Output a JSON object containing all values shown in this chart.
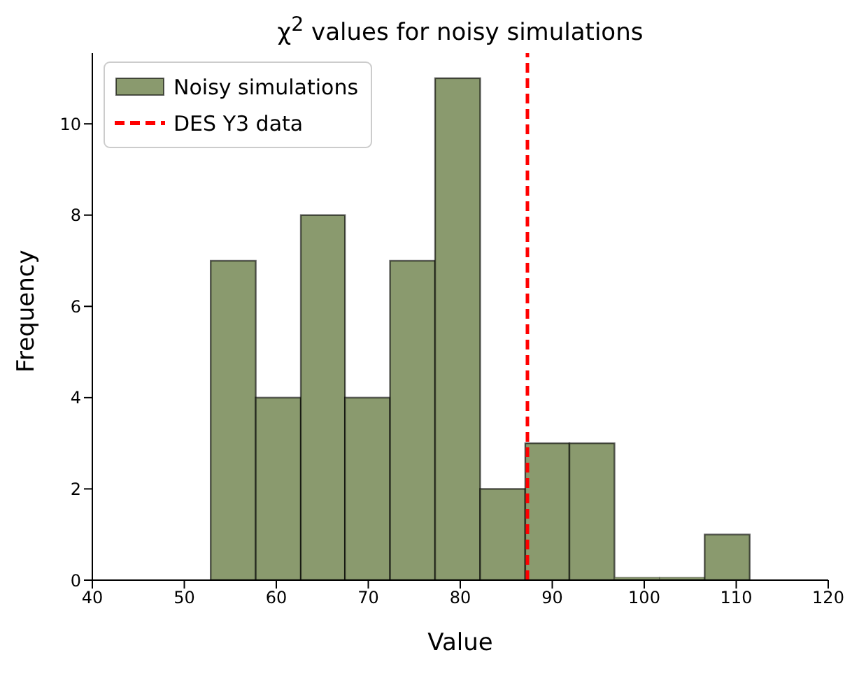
{
  "chart_data": {
    "type": "histogram",
    "title": "χ$^{2}$ values for noisy simulations",
    "xlabel": "Value",
    "ylabel": "Frequency",
    "bins": [
      52.9,
      57.8,
      62.7,
      67.5,
      72.4,
      77.3,
      82.2,
      87.1,
      91.9,
      96.8,
      101.7,
      106.6,
      111.5
    ],
    "series": [
      {
        "name": "Noisy simulations",
        "color": "#8a9a6e",
        "values": [
          7,
          4,
          8,
          4,
          7,
          11,
          2,
          3,
          3,
          0,
          0,
          1
        ]
      },
      {
        "type": "line",
        "name": "DES Y3 data",
        "color": "#ff0000",
        "x": [
          87.3,
          87.3
        ],
        "values": [
          0,
          11.55
        ],
        "line_style": "dashed"
      }
    ],
    "xlim": [
      40,
      120
    ],
    "xticks": [
      40,
      50,
      60,
      70,
      80,
      90,
      100,
      110,
      120
    ],
    "ylim": [
      0,
      11.55
    ],
    "yticks": [
      0,
      2,
      4,
      6,
      8,
      10
    ],
    "legend": "top left",
    "grid": false
  }
}
